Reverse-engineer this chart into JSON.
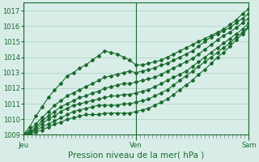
{
  "title": "Pression niveau de la mer( hPa )",
  "bg_color": "#d8ede8",
  "grid_color": "#aacfbf",
  "line_color": "#1a6b2e",
  "ylim": [
    1009,
    1017.5
  ],
  "yticks": [
    1009,
    1010,
    1011,
    1012,
    1013,
    1014,
    1015,
    1016,
    1017
  ],
  "xlabel_ticks": [
    0,
    0.5,
    1.0
  ],
  "xlabel_labels": [
    "Jeu",
    "Ven",
    "Sam"
  ],
  "lines": [
    [
      1009.0,
      1009.5,
      1010.2,
      1010.8,
      1011.4,
      1011.9,
      1012.3,
      1012.8,
      1013.0,
      1013.3,
      1013.5,
      1013.8,
      1014.1,
      1014.4,
      1014.3,
      1014.2,
      1014.0,
      1013.8,
      1013.5,
      1013.5,
      1013.6,
      1013.7,
      1013.8,
      1014.0,
      1014.2,
      1014.4,
      1014.6,
      1014.8,
      1015.0,
      1015.2,
      1015.4,
      1015.6,
      1015.8,
      1016.1,
      1016.4,
      1016.8,
      1017.1
    ],
    [
      1009.0,
      1009.3,
      1009.7,
      1010.1,
      1010.5,
      1010.9,
      1011.2,
      1011.5,
      1011.7,
      1011.9,
      1012.1,
      1012.3,
      1012.5,
      1012.7,
      1012.8,
      1012.9,
      1013.0,
      1013.1,
      1013.0,
      1013.1,
      1013.2,
      1013.3,
      1013.5,
      1013.6,
      1013.8,
      1014.0,
      1014.2,
      1014.4,
      1014.7,
      1015.0,
      1015.3,
      1015.5,
      1015.7,
      1015.9,
      1016.2,
      1016.5,
      1016.8
    ],
    [
      1009.0,
      1009.2,
      1009.5,
      1009.9,
      1010.2,
      1010.5,
      1010.8,
      1011.0,
      1011.2,
      1011.4,
      1011.5,
      1011.7,
      1011.8,
      1012.0,
      1012.1,
      1012.2,
      1012.3,
      1012.3,
      1012.4,
      1012.5,
      1012.6,
      1012.7,
      1012.9,
      1013.1,
      1013.3,
      1013.5,
      1013.7,
      1013.9,
      1014.2,
      1014.5,
      1014.8,
      1015.1,
      1015.4,
      1015.6,
      1015.9,
      1016.2,
      1016.5
    ],
    [
      1009.0,
      1009.1,
      1009.4,
      1009.7,
      1010.0,
      1010.2,
      1010.5,
      1010.7,
      1010.9,
      1011.0,
      1011.1,
      1011.2,
      1011.3,
      1011.4,
      1011.5,
      1011.5,
      1011.6,
      1011.6,
      1011.7,
      1011.8,
      1011.9,
      1012.1,
      1012.3,
      1012.5,
      1012.7,
      1012.9,
      1013.1,
      1013.4,
      1013.7,
      1014.0,
      1014.3,
      1014.6,
      1014.9,
      1015.2,
      1015.5,
      1015.8,
      1016.2
    ],
    [
      1009.0,
      1009.1,
      1009.3,
      1009.5,
      1009.7,
      1009.9,
      1010.1,
      1010.3,
      1010.5,
      1010.6,
      1010.7,
      1010.8,
      1010.9,
      1010.9,
      1010.9,
      1010.9,
      1011.0,
      1011.0,
      1011.1,
      1011.2,
      1011.3,
      1011.5,
      1011.7,
      1011.9,
      1012.2,
      1012.5,
      1012.8,
      1013.1,
      1013.4,
      1013.7,
      1014.0,
      1014.3,
      1014.6,
      1014.9,
      1015.3,
      1015.6,
      1016.0
    ],
    [
      1009.0,
      1009.0,
      1009.2,
      1009.3,
      1009.5,
      1009.7,
      1009.8,
      1010.0,
      1010.1,
      1010.2,
      1010.3,
      1010.3,
      1010.3,
      1010.4,
      1010.4,
      1010.4,
      1010.4,
      1010.4,
      1010.5,
      1010.6,
      1010.7,
      1010.9,
      1011.1,
      1011.3,
      1011.6,
      1011.9,
      1012.2,
      1012.5,
      1012.9,
      1013.2,
      1013.6,
      1014.0,
      1014.3,
      1014.7,
      1015.1,
      1015.5,
      1015.9
    ]
  ],
  "marker": "D",
  "markersize": 2.0,
  "linewidth": 0.8,
  "tick_fontsize": 6.0,
  "label_fontsize": 7.5,
  "minor_xtick_count": 28
}
